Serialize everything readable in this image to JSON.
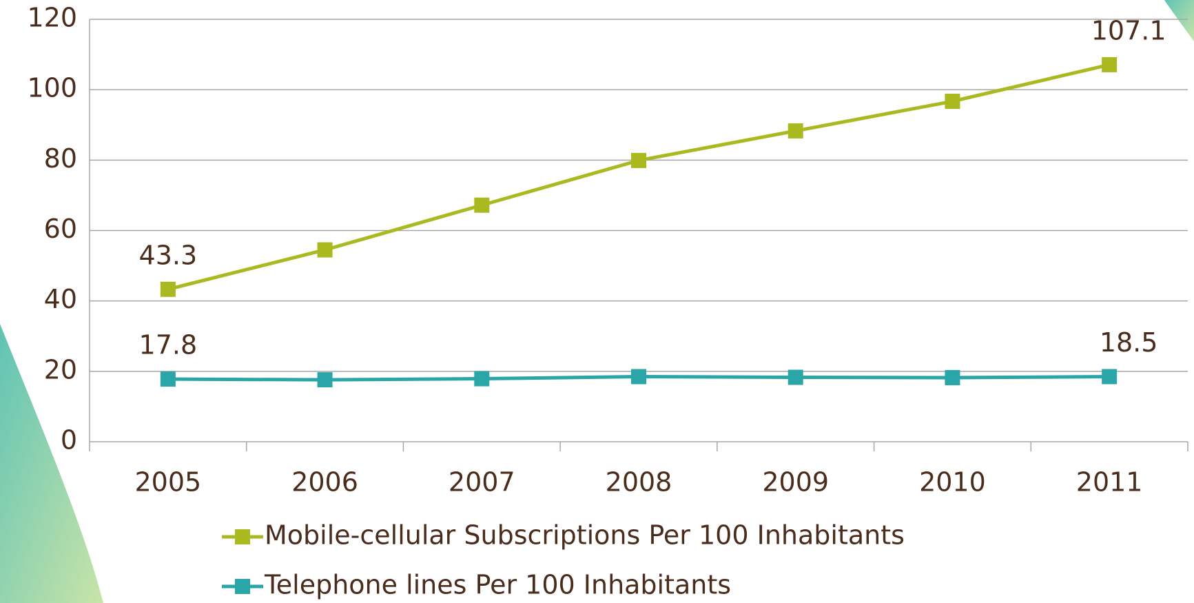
{
  "chart_data": {
    "type": "line",
    "categories": [
      "2005",
      "2006",
      "2007",
      "2008",
      "2009",
      "2010",
      "2011"
    ],
    "series": [
      {
        "name": "Mobile-cellular Subscriptions Per 100 Inhabitants",
        "color": "#a9b91f",
        "values": [
          43.3,
          54.5,
          67.2,
          79.9,
          88.3,
          96.7,
          107.1
        ]
      },
      {
        "name": "Telephone lines Per 100 Inhabitants",
        "color": "#2aa6a8",
        "values": [
          17.8,
          17.6,
          17.9,
          18.5,
          18.3,
          18.2,
          18.5
        ]
      }
    ],
    "ylim": [
      0,
      120
    ],
    "yticks": [
      0,
      20,
      40,
      60,
      80,
      100,
      120
    ],
    "grid": true,
    "legend": "bottom"
  }
}
